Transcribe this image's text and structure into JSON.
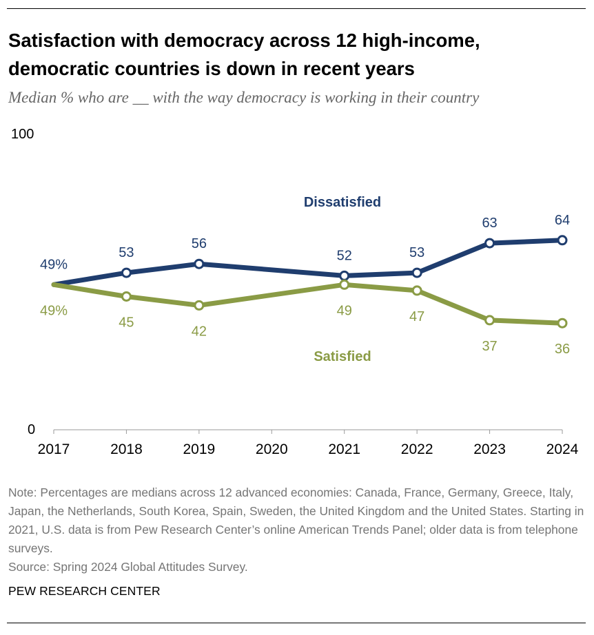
{
  "header": {
    "title_line1": "Satisfaction with democracy across 12 high-income,",
    "title_line2": "democratic countries is down in recent years",
    "subtitle": "Median % who are __ with the way democracy is working in their country"
  },
  "chart_data": {
    "type": "line",
    "x": [
      2017,
      2018,
      2019,
      2021,
      2022,
      2023,
      2024
    ],
    "xticks": [
      "2017",
      "2018",
      "2019",
      "2020",
      "2021",
      "2022",
      "2023",
      "2024"
    ],
    "xlim": [
      2017,
      2024
    ],
    "ylim": [
      0,
      100
    ],
    "yticks": [
      "0",
      "100"
    ],
    "grid": false,
    "series": [
      {
        "name": "Dissatisfied",
        "color": "#1f3d6e",
        "values": [
          49,
          53,
          56,
          52,
          53,
          63,
          64
        ],
        "labels": [
          "49%",
          "53",
          "56",
          "52",
          "53",
          "63",
          "64"
        ]
      },
      {
        "name": "Satisfied",
        "color": "#8a9b45",
        "values": [
          49,
          45,
          42,
          49,
          47,
          37,
          36
        ],
        "labels": [
          "49%",
          "45",
          "42",
          "49",
          "47",
          "37",
          "36"
        ]
      }
    ]
  },
  "footer": {
    "note": "Note: Percentages are medians across 12 advanced economies: Canada, France, Germany, Greece, Italy, Japan, the Netherlands, South Korea, Spain, Sweden, the United Kingdom and the United States. Starting in 2021, U.S. data is from Pew Research Center’s online American Trends Panel; older data is from telephone surveys.",
    "source": "Source: Spring 2024 Global Attitudes Survey.",
    "brand": "PEW RESEARCH CENTER"
  }
}
